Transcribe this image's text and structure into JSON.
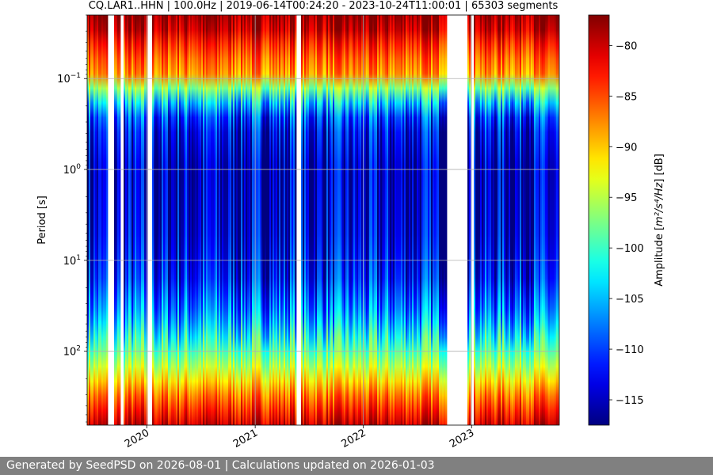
{
  "chart_data": {
    "type": "heatmap",
    "title": "CQ.LAR1..HHN | 100.0Hz | 2019-06-14T00:24:20 - 2023-10-24T11:00:01 | 65303 segments",
    "xlabel": "",
    "ylabel": "Period [s]",
    "x_tick_labels": [
      "2020",
      "2021",
      "2022",
      "2023"
    ],
    "x_ticks_dates": [
      "2020-01-01",
      "2021-01-01",
      "2022-01-01",
      "2023-01-01"
    ],
    "x_range": [
      "2019-06-14",
      "2023-10-24"
    ],
    "y_scale": "log",
    "y_inverted": true,
    "y_range": [
      0.02,
      650
    ],
    "y_tick_labels": [
      {
        "base": "10",
        "exp": "−1",
        "value": 0.1
      },
      {
        "base": "10",
        "exp": "0",
        "value": 1
      },
      {
        "base": "10",
        "exp": "1",
        "value": 10
      },
      {
        "base": "10",
        "exp": "2",
        "value": 100
      }
    ],
    "grid": true,
    "colorbar": {
      "label_prefix": "Amplitude [",
      "label_math": "m²/s⁴/Hz",
      "label_suffix": "] [dB]",
      "colormap": "jet",
      "range": [
        -117.5,
        -77
      ],
      "ticks": [
        "−80",
        "−85",
        "−90",
        "−95",
        "−100",
        "−105",
        "−110",
        "−115"
      ],
      "tick_values": [
        -80,
        -85,
        -90,
        -95,
        -100,
        -105,
        -110,
        -115
      ]
    },
    "gaps": [
      {
        "start": "2019-08-20",
        "end": "2019-09-15"
      },
      {
        "start": "2019-10-05",
        "end": "2019-10-15"
      },
      {
        "start": "2020-01-01",
        "end": "2020-01-20"
      },
      {
        "start": "2021-05-20",
        "end": "2021-06-05"
      },
      {
        "start": "2022-10-10",
        "end": "2022-12-20"
      },
      {
        "start": "2022-12-28",
        "end": "2023-01-08"
      }
    ],
    "period_profile": [
      {
        "period": 0.02,
        "db": -78
      },
      {
        "period": 0.03,
        "db": -80
      },
      {
        "period": 0.05,
        "db": -85
      },
      {
        "period": 0.09,
        "db": -88
      },
      {
        "period": 0.15,
        "db": -101
      },
      {
        "period": 0.3,
        "db": -112
      },
      {
        "period": 1,
        "db": -115
      },
      {
        "period": 5,
        "db": -114
      },
      {
        "period": 15,
        "db": -112
      },
      {
        "period": 40,
        "db": -107
      },
      {
        "period": 80,
        "db": -101
      },
      {
        "period": 150,
        "db": -95
      },
      {
        "period": 300,
        "db": -87
      },
      {
        "period": 650,
        "db": -80
      }
    ]
  },
  "footer": {
    "text": "Generated by SeedPSD on 2026-08-01 | Calculations updated on 2026-01-03"
  }
}
